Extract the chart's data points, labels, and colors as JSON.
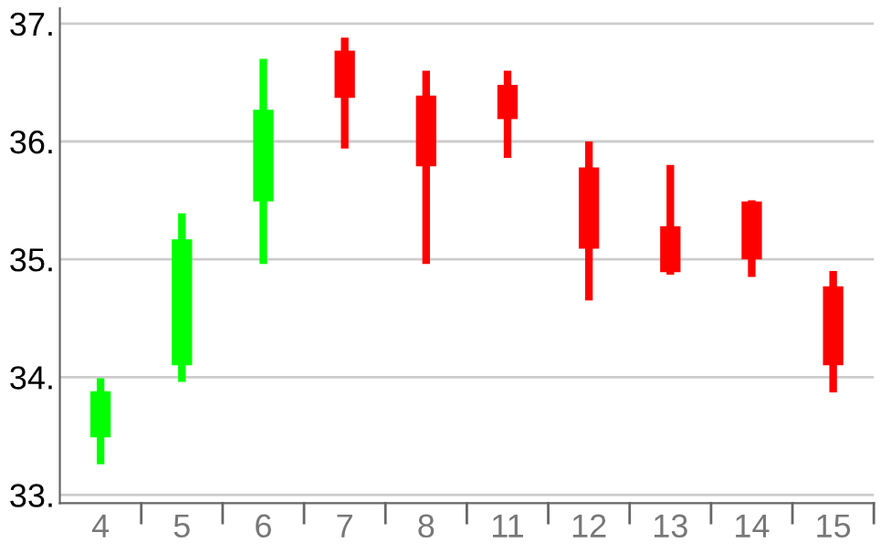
{
  "chart_data": {
    "type": "candlestick",
    "categories": [
      "4",
      "5",
      "6",
      "7",
      "8",
      "11",
      "12",
      "13",
      "14",
      "15"
    ],
    "ohlc": [
      [
        33.49,
        33.99,
        33.26,
        33.88
      ],
      [
        34.1,
        35.39,
        33.96,
        35.17
      ],
      [
        35.49,
        36.7,
        34.96,
        36.27
      ],
      [
        36.77,
        36.88,
        35.94,
        36.37
      ],
      [
        36.39,
        36.6,
        34.96,
        35.79
      ],
      [
        36.48,
        36.6,
        35.86,
        36.19
      ],
      [
        35.78,
        36.0,
        34.65,
        35.09
      ],
      [
        35.28,
        35.8,
        34.87,
        34.89
      ],
      [
        35.49,
        35.5,
        34.85,
        35.0
      ],
      [
        34.77,
        34.9,
        33.87,
        34.1
      ]
    ],
    "colors": [
      "#00ff00",
      "#00ff00",
      "#00ff00",
      "#ff0000",
      "#ff0000",
      "#ff0000",
      "#ff0000",
      "#ff0000",
      "#ff0000",
      "#ff0000"
    ],
    "ylim": [
      32.93,
      37.13
    ],
    "yticks": [
      {
        "value": 33,
        "label": "33."
      },
      {
        "value": 34,
        "label": "34."
      },
      {
        "value": 35,
        "label": "35."
      },
      {
        "value": 36,
        "label": "36."
      },
      {
        "value": 37,
        "label": "37."
      }
    ],
    "grid": "y"
  }
}
